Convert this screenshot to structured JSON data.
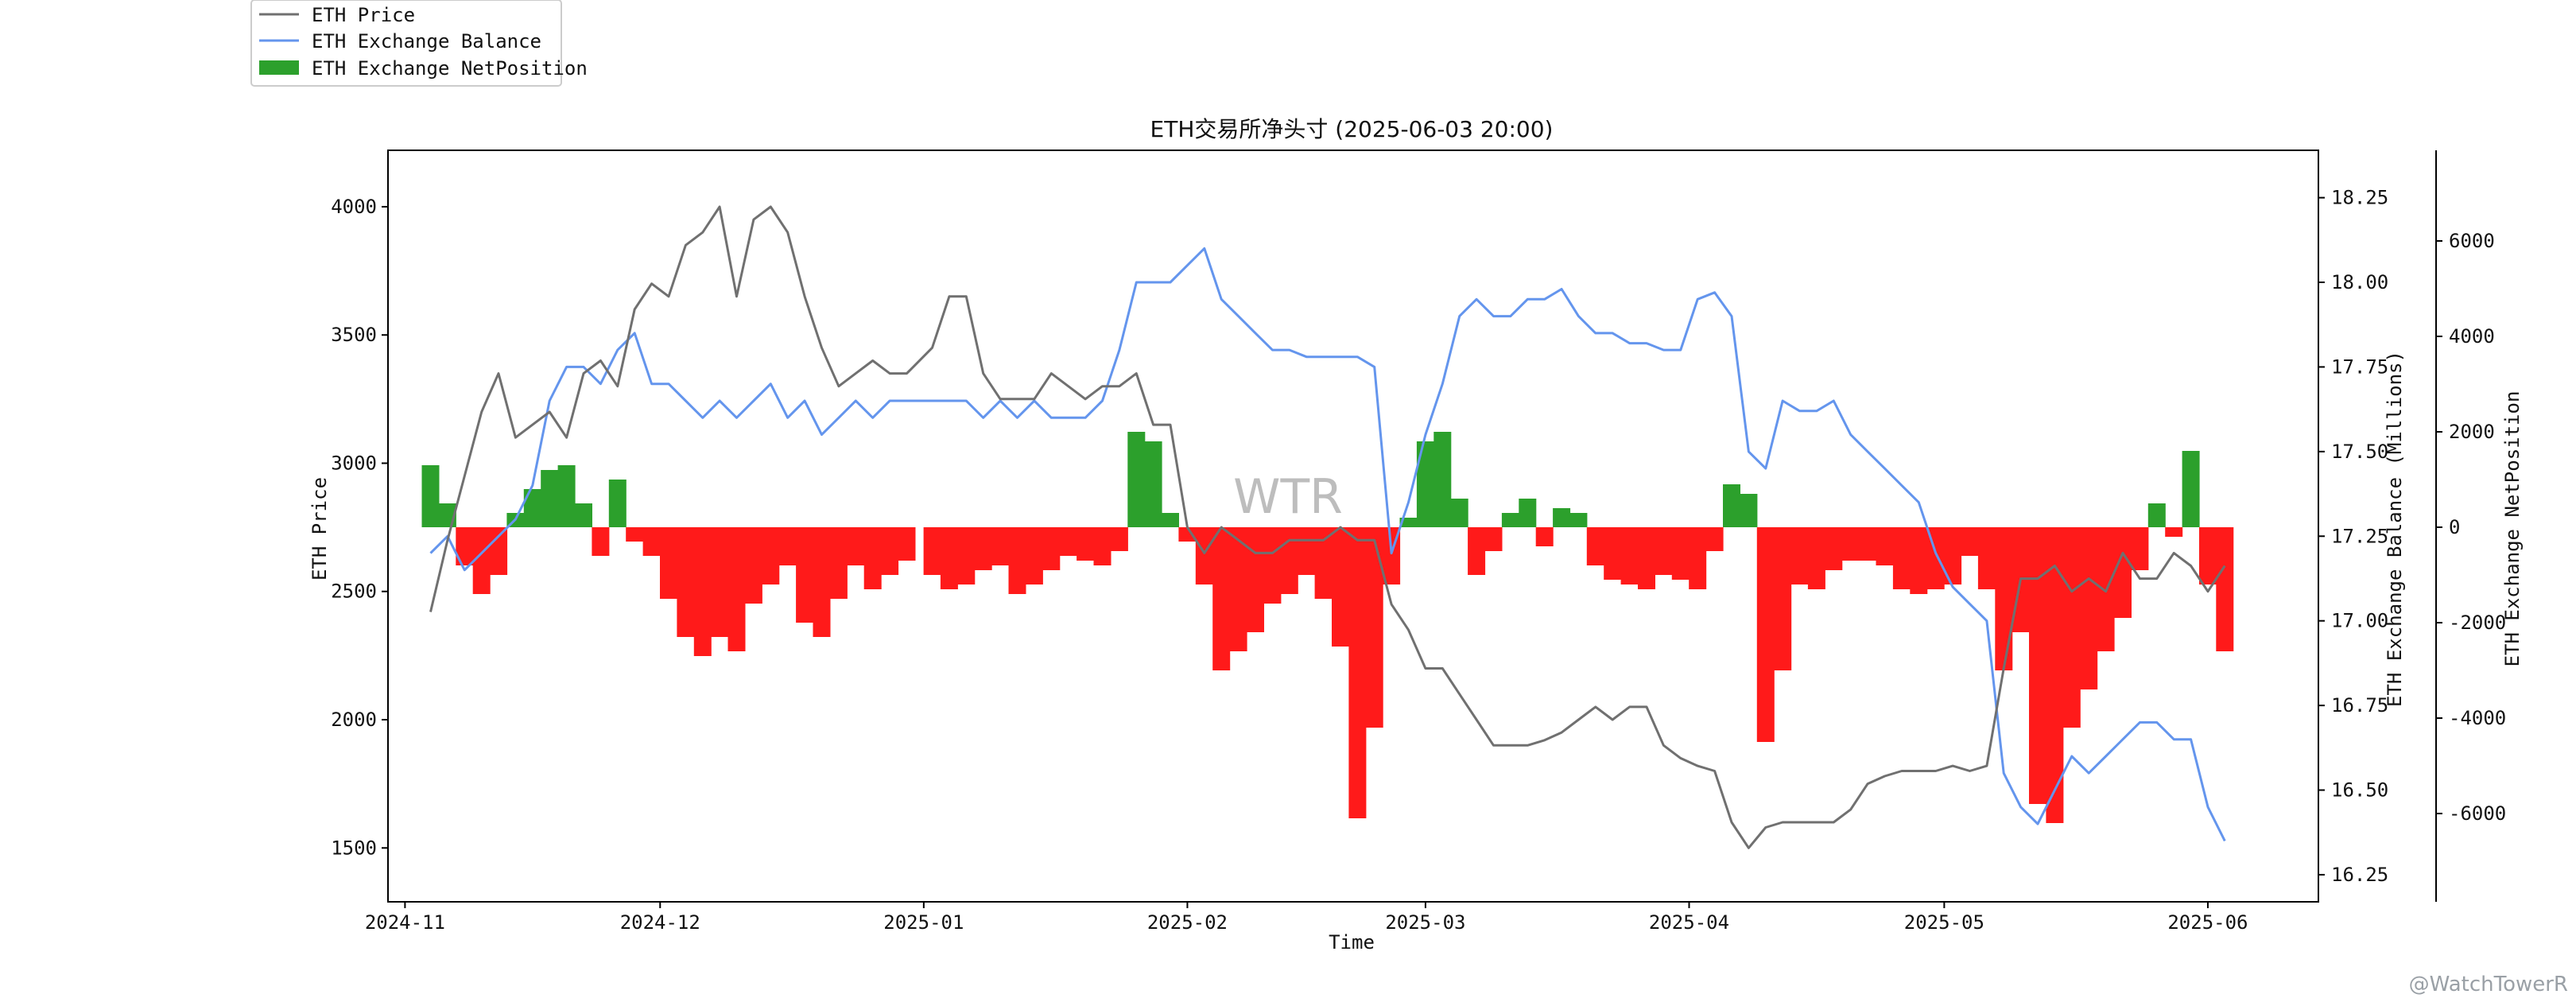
{
  "chart_data": {
    "type": "line",
    "title": "ETH交易所净头寸 (2025-06-03 20:00)",
    "xlabel": "Time",
    "ylabel_left": "ETH Price",
    "ylabel_right1": "ETH Exchange Balance (Millions)",
    "ylabel_right2": "ETH Exchange NetPosition",
    "xlim": [
      "2024-10-30",
      "2025-06-14"
    ],
    "x_ticks": [
      "2024-11",
      "2024-12",
      "2025-01",
      "2025-02",
      "2025-03",
      "2025-04",
      "2025-05",
      "2025-06"
    ],
    "price_axis": {
      "ylim": [
        1290,
        4220
      ],
      "ticks": [
        1500,
        2000,
        2500,
        3000,
        3500,
        4000
      ]
    },
    "balance_axis": {
      "ylim": [
        16.17,
        18.39
      ],
      "ticks": [
        16.25,
        16.5,
        16.75,
        17.0,
        17.25,
        17.5,
        17.75,
        18.0,
        18.25
      ]
    },
    "netposition_axis": {
      "ylim": [
        -7850,
        7900
      ],
      "ticks": [
        -6000,
        -4000,
        -2000,
        0,
        2000,
        4000,
        6000
      ]
    },
    "legend": {
      "placement": "top-left",
      "entries": [
        "ETH Price",
        "ETH Exchange Balance",
        "ETH Exchange NetPosition"
      ]
    },
    "colors": {
      "price": "#707070",
      "balance": "#6495ed",
      "positive": "#2ca02c",
      "negative": "#ff1a1a"
    },
    "watermark": "WTR",
    "credit": "@WatchTowerR",
    "series": [
      {
        "name": "ETH Price",
        "x": [
          "2024-11-04",
          "2024-11-06",
          "2024-11-08",
          "2024-11-10",
          "2024-11-12",
          "2024-11-14",
          "2024-11-16",
          "2024-11-18",
          "2024-11-20",
          "2024-11-22",
          "2024-11-24",
          "2024-11-26",
          "2024-11-28",
          "2024-11-30",
          "2024-12-02",
          "2024-12-04",
          "2024-12-06",
          "2024-12-08",
          "2024-12-10",
          "2024-12-12",
          "2024-12-14",
          "2024-12-16",
          "2024-12-18",
          "2024-12-20",
          "2024-12-22",
          "2024-12-24",
          "2024-12-26",
          "2024-12-28",
          "2024-12-30",
          "2025-01-02",
          "2025-01-04",
          "2025-01-06",
          "2025-01-08",
          "2025-01-10",
          "2025-01-12",
          "2025-01-14",
          "2025-01-16",
          "2025-01-18",
          "2025-01-20",
          "2025-01-22",
          "2025-01-24",
          "2025-01-26",
          "2025-01-28",
          "2025-01-30",
          "2025-02-01",
          "2025-02-03",
          "2025-02-05",
          "2025-02-07",
          "2025-02-09",
          "2025-02-11",
          "2025-02-13",
          "2025-02-15",
          "2025-02-17",
          "2025-02-19",
          "2025-02-21",
          "2025-02-23",
          "2025-02-25",
          "2025-02-27",
          "2025-03-01",
          "2025-03-03",
          "2025-03-05",
          "2025-03-07",
          "2025-03-09",
          "2025-03-11",
          "2025-03-13",
          "2025-03-15",
          "2025-03-17",
          "2025-03-19",
          "2025-03-21",
          "2025-03-23",
          "2025-03-25",
          "2025-03-27",
          "2025-03-29",
          "2025-03-31",
          "2025-04-02",
          "2025-04-04",
          "2025-04-06",
          "2025-04-08",
          "2025-04-10",
          "2025-04-12",
          "2025-04-14",
          "2025-04-16",
          "2025-04-18",
          "2025-04-20",
          "2025-04-22",
          "2025-04-24",
          "2025-04-26",
          "2025-04-28",
          "2025-04-30",
          "2025-05-02",
          "2025-05-04",
          "2025-05-06",
          "2025-05-08",
          "2025-05-10",
          "2025-05-12",
          "2025-05-14",
          "2025-05-16",
          "2025-05-18",
          "2025-05-20",
          "2025-05-22",
          "2025-05-24",
          "2025-05-26",
          "2025-05-28",
          "2025-05-30",
          "2025-06-01",
          "2025-06-03"
        ],
        "values": [
          2420,
          2700,
          2950,
          3200,
          3350,
          3100,
          3150,
          3200,
          3100,
          3350,
          3400,
          3300,
          3600,
          3700,
          3650,
          3850,
          3900,
          4000,
          3650,
          3950,
          4000,
          3900,
          3650,
          3450,
          3300,
          3350,
          3400,
          3350,
          3350,
          3450,
          3650,
          3650,
          3350,
          3250,
          3250,
          3250,
          3350,
          3300,
          3250,
          3300,
          3300,
          3350,
          3150,
          3150,
          2750,
          2650,
          2750,
          2700,
          2650,
          2650,
          2700,
          2700,
          2700,
          2750,
          2700,
          2700,
          2450,
          2350,
          2200,
          2200,
          2100,
          2000,
          1900,
          1900,
          1900,
          1920,
          1950,
          2000,
          2050,
          2000,
          2050,
          2050,
          1900,
          1850,
          1820,
          1800,
          1600,
          1500,
          1580,
          1600,
          1600,
          1600,
          1600,
          1650,
          1750,
          1780,
          1800,
          1800,
          1800,
          1820,
          1800,
          1820,
          2200,
          2550,
          2550,
          2600,
          2500,
          2550,
          2500,
          2650,
          2550,
          2550,
          2650,
          2600,
          2500,
          2600
        ]
      },
      {
        "name": "ETH Exchange Balance",
        "x": [
          "2024-11-04",
          "2024-11-06",
          "2024-11-08",
          "2024-11-10",
          "2024-11-12",
          "2024-11-14",
          "2024-11-16",
          "2024-11-18",
          "2024-11-20",
          "2024-11-22",
          "2024-11-24",
          "2024-11-26",
          "2024-11-28",
          "2024-11-30",
          "2024-12-02",
          "2024-12-04",
          "2024-12-06",
          "2024-12-08",
          "2024-12-10",
          "2024-12-12",
          "2024-12-14",
          "2024-12-16",
          "2024-12-18",
          "2024-12-20",
          "2024-12-22",
          "2024-12-24",
          "2024-12-26",
          "2024-12-28",
          "2024-12-30",
          "2025-01-02",
          "2025-01-04",
          "2025-01-06",
          "2025-01-08",
          "2025-01-10",
          "2025-01-12",
          "2025-01-14",
          "2025-01-16",
          "2025-01-18",
          "2025-01-20",
          "2025-01-22",
          "2025-01-24",
          "2025-01-26",
          "2025-01-28",
          "2025-01-30",
          "2025-02-01",
          "2025-02-03",
          "2025-02-05",
          "2025-02-07",
          "2025-02-09",
          "2025-02-11",
          "2025-02-13",
          "2025-02-15",
          "2025-02-17",
          "2025-02-19",
          "2025-02-21",
          "2025-02-23",
          "2025-02-25",
          "2025-02-27",
          "2025-03-01",
          "2025-03-03",
          "2025-03-05",
          "2025-03-07",
          "2025-03-09",
          "2025-03-11",
          "2025-03-13",
          "2025-03-15",
          "2025-03-17",
          "2025-03-19",
          "2025-03-21",
          "2025-03-23",
          "2025-03-25",
          "2025-03-27",
          "2025-03-29",
          "2025-03-31",
          "2025-04-02",
          "2025-04-04",
          "2025-04-06",
          "2025-04-08",
          "2025-04-10",
          "2025-04-12",
          "2025-04-14",
          "2025-04-16",
          "2025-04-18",
          "2025-04-20",
          "2025-04-22",
          "2025-04-24",
          "2025-04-26",
          "2025-04-28",
          "2025-04-30",
          "2025-05-02",
          "2025-05-04",
          "2025-05-06",
          "2025-05-08",
          "2025-05-10",
          "2025-05-12",
          "2025-05-14",
          "2025-05-16",
          "2025-05-18",
          "2025-05-20",
          "2025-05-22",
          "2025-05-24",
          "2025-05-26",
          "2025-05-28",
          "2025-05-30",
          "2025-06-01",
          "2025-06-03"
        ],
        "values": [
          17.2,
          17.25,
          17.15,
          17.2,
          17.25,
          17.3,
          17.4,
          17.65,
          17.75,
          17.75,
          17.7,
          17.8,
          17.85,
          17.7,
          17.7,
          17.65,
          17.6,
          17.65,
          17.6,
          17.65,
          17.7,
          17.6,
          17.65,
          17.55,
          17.6,
          17.65,
          17.6,
          17.65,
          17.65,
          17.65,
          17.65,
          17.65,
          17.6,
          17.65,
          17.6,
          17.65,
          17.6,
          17.6,
          17.6,
          17.65,
          17.8,
          18.0,
          18.0,
          18.0,
          18.05,
          18.1,
          17.95,
          17.9,
          17.85,
          17.8,
          17.8,
          17.78,
          17.78,
          17.78,
          17.78,
          17.75,
          17.2,
          17.35,
          17.55,
          17.7,
          17.9,
          17.95,
          17.9,
          17.9,
          17.95,
          17.95,
          17.98,
          17.9,
          17.85,
          17.85,
          17.82,
          17.82,
          17.8,
          17.8,
          17.95,
          17.97,
          17.9,
          17.5,
          17.45,
          17.65,
          17.62,
          17.62,
          17.65,
          17.55,
          17.5,
          17.45,
          17.4,
          17.35,
          17.2,
          17.1,
          17.05,
          17.0,
          16.55,
          16.45,
          16.4,
          16.5,
          16.6,
          16.55,
          16.6,
          16.65,
          16.7,
          16.7,
          16.65,
          16.65,
          16.45,
          16.35
        ]
      },
      {
        "name": "ETH Exchange NetPosition",
        "x": [
          "2024-11-04",
          "2024-11-06",
          "2024-11-08",
          "2024-11-10",
          "2024-11-12",
          "2024-11-14",
          "2024-11-16",
          "2024-11-18",
          "2024-11-20",
          "2024-11-22",
          "2024-11-24",
          "2024-11-26",
          "2024-11-28",
          "2024-11-30",
          "2024-12-02",
          "2024-12-04",
          "2024-12-06",
          "2024-12-08",
          "2024-12-10",
          "2024-12-12",
          "2024-12-14",
          "2024-12-16",
          "2024-12-18",
          "2024-12-20",
          "2024-12-22",
          "2024-12-24",
          "2024-12-26",
          "2024-12-28",
          "2024-12-30",
          "2025-01-02",
          "2025-01-04",
          "2025-01-06",
          "2025-01-08",
          "2025-01-10",
          "2025-01-12",
          "2025-01-14",
          "2025-01-16",
          "2025-01-18",
          "2025-01-20",
          "2025-01-22",
          "2025-01-24",
          "2025-01-26",
          "2025-01-28",
          "2025-01-30",
          "2025-02-01",
          "2025-02-03",
          "2025-02-05",
          "2025-02-07",
          "2025-02-09",
          "2025-02-11",
          "2025-02-13",
          "2025-02-15",
          "2025-02-17",
          "2025-02-19",
          "2025-02-21",
          "2025-02-23",
          "2025-02-25",
          "2025-02-27",
          "2025-03-01",
          "2025-03-03",
          "2025-03-05",
          "2025-03-07",
          "2025-03-09",
          "2025-03-11",
          "2025-03-13",
          "2025-03-15",
          "2025-03-17",
          "2025-03-19",
          "2025-03-21",
          "2025-03-23",
          "2025-03-25",
          "2025-03-27",
          "2025-03-29",
          "2025-03-31",
          "2025-04-02",
          "2025-04-04",
          "2025-04-06",
          "2025-04-08",
          "2025-04-10",
          "2025-04-12",
          "2025-04-14",
          "2025-04-16",
          "2025-04-18",
          "2025-04-20",
          "2025-04-22",
          "2025-04-24",
          "2025-04-26",
          "2025-04-28",
          "2025-04-30",
          "2025-05-02",
          "2025-05-04",
          "2025-05-06",
          "2025-05-08",
          "2025-05-10",
          "2025-05-12",
          "2025-05-14",
          "2025-05-16",
          "2025-05-18",
          "2025-05-20",
          "2025-05-22",
          "2025-05-24",
          "2025-05-26",
          "2025-05-28",
          "2025-05-30",
          "2025-06-01",
          "2025-06-03"
        ],
        "values": [
          1300,
          500,
          -800,
          -1400,
          -1000,
          300,
          800,
          1200,
          1300,
          500,
          -600,
          1000,
          -300,
          -600,
          -1500,
          -2300,
          -2700,
          -2300,
          -2600,
          -1600,
          -1200,
          -800,
          -2000,
          -2300,
          -1500,
          -800,
          -1300,
          -1000,
          -700,
          -1000,
          -1300,
          -1200,
          -900,
          -800,
          -1400,
          -1200,
          -900,
          -600,
          -700,
          -800,
          -500,
          2000,
          1800,
          300,
          -300,
          -1200,
          -3000,
          -2600,
          -2200,
          -1600,
          -1400,
          -1000,
          -1500,
          -2500,
          -6100,
          -4200,
          -1200,
          200,
          1800,
          2000,
          600,
          -1000,
          -500,
          300,
          600,
          -400,
          400,
          300,
          -800,
          -1100,
          -1200,
          -1300,
          -1000,
          -1100,
          -1300,
          -500,
          900,
          700,
          -4500,
          -3000,
          -1200,
          -1300,
          -900,
          -700,
          -700,
          -800,
          -1300,
          -1400,
          -1300,
          -1200,
          -600,
          -1300,
          -3000,
          -2200,
          -5800,
          -6200,
          -4200,
          -3400,
          -2600,
          -1900,
          -900,
          500,
          -200,
          1600,
          -1200,
          -2600
        ]
      }
    ]
  }
}
